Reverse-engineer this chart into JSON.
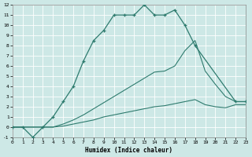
{
  "background_color": "#cde8e6",
  "grid_color": "#b8d8d4",
  "line_color": "#2e7b6e",
  "xlim": [
    0,
    23
  ],
  "ylim": [
    -1,
    12
  ],
  "xticks": [
    0,
    1,
    2,
    3,
    4,
    5,
    6,
    7,
    8,
    9,
    10,
    11,
    12,
    13,
    14,
    15,
    16,
    17,
    18,
    19,
    20,
    21,
    22,
    23
  ],
  "yticks": [
    -1,
    0,
    1,
    2,
    3,
    4,
    5,
    6,
    7,
    8,
    9,
    10,
    11,
    12
  ],
  "xlabel": "Humidex (Indice chaleur)",
  "line1_x": [
    0,
    1,
    2,
    3,
    4,
    5,
    6,
    7,
    8,
    9,
    10,
    11,
    12,
    13,
    14,
    15,
    16,
    17,
    18,
    22,
    23
  ],
  "line1_y": [
    0,
    0,
    -1,
    0,
    1,
    2.5,
    4,
    6.5,
    8.5,
    9.5,
    11,
    11,
    11,
    12,
    11,
    11,
    11.5,
    10,
    8,
    2.5,
    2.5
  ],
  "line2_x": [
    0,
    2,
    3,
    4,
    5,
    6,
    7,
    8,
    9,
    10,
    11,
    12,
    13,
    14,
    15,
    16,
    17,
    18,
    19,
    20,
    21,
    22,
    23
  ],
  "line2_y": [
    0,
    0,
    0,
    0,
    0.3,
    0.7,
    1.2,
    1.8,
    2.4,
    3.0,
    3.6,
    4.2,
    4.8,
    5.4,
    5.5,
    6.0,
    7.5,
    8.5,
    5.5,
    4.2,
    3.0,
    2.5,
    2.5
  ],
  "line3_x": [
    0,
    2,
    3,
    4,
    5,
    6,
    7,
    8,
    9,
    10,
    11,
    12,
    13,
    14,
    15,
    16,
    17,
    18,
    19,
    20,
    21,
    22,
    23
  ],
  "line3_y": [
    0,
    0,
    0,
    0,
    0.1,
    0.3,
    0.5,
    0.7,
    1.0,
    1.2,
    1.4,
    1.6,
    1.8,
    2.0,
    2.1,
    2.3,
    2.5,
    2.7,
    2.2,
    2.0,
    1.9,
    2.2,
    2.2
  ]
}
